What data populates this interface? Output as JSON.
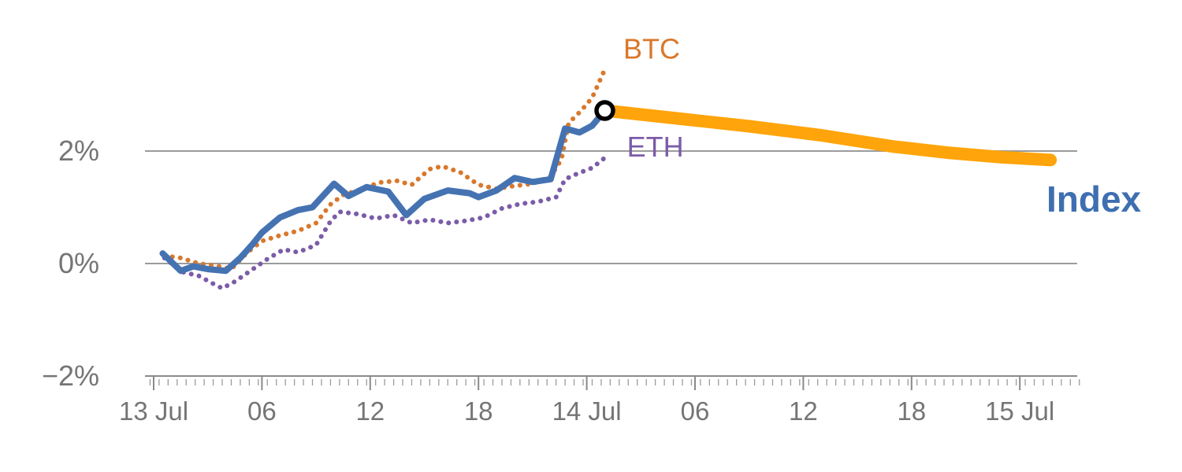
{
  "page": {
    "background": "#ffffff"
  },
  "chart_data": {
    "type": "line",
    "title": "",
    "xlabel": "",
    "ylabel": "",
    "x_unit": "hours since 13 Jul 00:00",
    "xlim": [
      -0.5,
      52
    ],
    "ylim": [
      -2,
      4.2
    ],
    "grid": "horizontal-only",
    "legend_position": "inline-annotations",
    "y_axis": {
      "ticks": [
        {
          "value": 2,
          "label": "2%"
        },
        {
          "value": 0,
          "label": "0%"
        },
        {
          "value": -2,
          "label": "−2%"
        }
      ]
    },
    "x_axis": {
      "ticks": [
        {
          "x": 0,
          "label": "13 Jul"
        },
        {
          "x": 6,
          "label": "06"
        },
        {
          "x": 12,
          "label": "12"
        },
        {
          "x": 18,
          "label": "18"
        },
        {
          "x": 24,
          "label": "14 Jul"
        },
        {
          "x": 30,
          "label": "06"
        },
        {
          "x": 36,
          "label": "12"
        },
        {
          "x": 42,
          "label": "18"
        },
        {
          "x": 48,
          "label": "15 Jul"
        }
      ]
    },
    "series": [
      {
        "name": "BTC",
        "color": "#D9782B",
        "style": "dotted",
        "width": 6,
        "points": [
          [
            0.6,
            0.14
          ],
          [
            1.5,
            0.1
          ],
          [
            2.5,
            0.0
          ],
          [
            3.5,
            -0.04
          ],
          [
            4.3,
            -0.1
          ],
          [
            5.2,
            0.2
          ],
          [
            6,
            0.4
          ],
          [
            7,
            0.5
          ],
          [
            8,
            0.58
          ],
          [
            9,
            0.72
          ],
          [
            9.8,
            1.05
          ],
          [
            10.5,
            1.22
          ],
          [
            11.5,
            1.32
          ],
          [
            12.5,
            1.44
          ],
          [
            13.5,
            1.47
          ],
          [
            14.3,
            1.4
          ],
          [
            15.3,
            1.68
          ],
          [
            16,
            1.73
          ],
          [
            17,
            1.62
          ],
          [
            18,
            1.4
          ],
          [
            19,
            1.33
          ],
          [
            20,
            1.38
          ],
          [
            21,
            1.42
          ],
          [
            22,
            1.55
          ],
          [
            22.6,
            1.85
          ],
          [
            23,
            2.5
          ],
          [
            23.7,
            2.72
          ],
          [
            24.3,
            2.95
          ],
          [
            25,
            3.45
          ]
        ]
      },
      {
        "name": "ETH",
        "color": "#7B5CA8",
        "style": "dotted",
        "width": 6,
        "points": [
          [
            0.6,
            0.1
          ],
          [
            1.6,
            -0.15
          ],
          [
            2.5,
            -0.22
          ],
          [
            3.3,
            -0.36
          ],
          [
            3.8,
            -0.44
          ],
          [
            4.5,
            -0.32
          ],
          [
            5.5,
            -0.1
          ],
          [
            6.3,
            0.08
          ],
          [
            7.2,
            0.25
          ],
          [
            8,
            0.2
          ],
          [
            9,
            0.33
          ],
          [
            9.8,
            0.75
          ],
          [
            10.3,
            0.92
          ],
          [
            11.3,
            0.88
          ],
          [
            12.3,
            0.8
          ],
          [
            13.3,
            0.86
          ],
          [
            14.3,
            0.72
          ],
          [
            15.3,
            0.78
          ],
          [
            16.3,
            0.72
          ],
          [
            17.3,
            0.76
          ],
          [
            18.3,
            0.82
          ],
          [
            19.3,
            0.98
          ],
          [
            20.3,
            1.06
          ],
          [
            21.3,
            1.1
          ],
          [
            22.3,
            1.18
          ],
          [
            22.8,
            1.5
          ],
          [
            23.5,
            1.6
          ],
          [
            24.3,
            1.7
          ],
          [
            25,
            1.88
          ]
        ]
      },
      {
        "name": "Index forecast",
        "color": "#FFA40A",
        "style": "solid",
        "width": 16,
        "points": [
          [
            25,
            2.72
          ],
          [
            29,
            2.58
          ],
          [
            33,
            2.44
          ],
          [
            37,
            2.28
          ],
          [
            41,
            2.08
          ],
          [
            44,
            1.97
          ],
          [
            47,
            1.89
          ],
          [
            49.7,
            1.84
          ]
        ]
      },
      {
        "name": "Index",
        "color": "#4573B2",
        "style": "solid",
        "width": 8,
        "points": [
          [
            0.5,
            0.18
          ],
          [
            1.5,
            -0.13
          ],
          [
            2.2,
            -0.05
          ],
          [
            3,
            -0.1
          ],
          [
            4,
            -0.13
          ],
          [
            4.8,
            0.1
          ],
          [
            5.5,
            0.35
          ],
          [
            6,
            0.55
          ],
          [
            7,
            0.82
          ],
          [
            8,
            0.95
          ],
          [
            8.8,
            1.0
          ],
          [
            10,
            1.42
          ],
          [
            10.8,
            1.2
          ],
          [
            11.8,
            1.36
          ],
          [
            13,
            1.28
          ],
          [
            14,
            0.86
          ],
          [
            15,
            1.15
          ],
          [
            16.3,
            1.3
          ],
          [
            17.5,
            1.25
          ],
          [
            18,
            1.18
          ],
          [
            19,
            1.3
          ],
          [
            20,
            1.52
          ],
          [
            21,
            1.45
          ],
          [
            22,
            1.5
          ],
          [
            22.8,
            2.4
          ],
          [
            23.6,
            2.33
          ],
          [
            24.3,
            2.45
          ],
          [
            25,
            2.72
          ]
        ]
      }
    ],
    "marker": {
      "x": 25,
      "y": 2.72,
      "shape": "open-circle",
      "stroke": "#000000",
      "fill": "#ffffff"
    },
    "annotations": [
      {
        "text": "BTC",
        "x": 27.6,
        "y": 3.82,
        "color": "#D9782B",
        "font_size": 36,
        "bold": false
      },
      {
        "text": "ETH",
        "x": 27.8,
        "y": 2.08,
        "color": "#7B5CA8",
        "font_size": 36,
        "bold": false
      },
      {
        "text": "Index",
        "x": 52.1,
        "y": 1.15,
        "color": "#3E6FB0",
        "font_size": 46,
        "bold": true
      }
    ],
    "colors": {
      "grid": "#9B9B9B",
      "axis": "#8A8A8A",
      "tick_text": "#757575"
    }
  }
}
